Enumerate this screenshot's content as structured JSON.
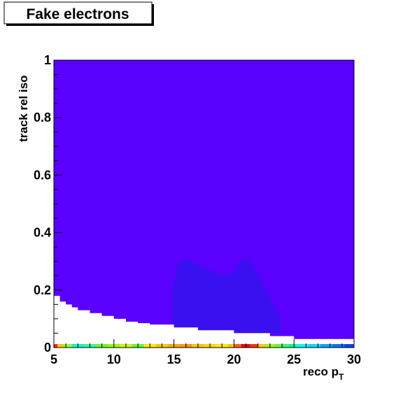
{
  "chart_data": {
    "type": "heatmap",
    "title": "Fake electrons",
    "xlabel_main": "reco p",
    "xlabel_sub": "T",
    "ylabel": "track rel iso",
    "xlim": [
      5,
      30
    ],
    "ylim": [
      0,
      1
    ],
    "x_ticks": [
      5,
      10,
      15,
      20,
      25,
      30
    ],
    "x_tick_labels": [
      "5",
      "10",
      "15",
      "20",
      "25",
      "30"
    ],
    "y_ticks": [
      0,
      0.2,
      0.4,
      0.6,
      0.8,
      1
    ],
    "y_tick_labels": [
      "0",
      "0.2",
      "0.4",
      "0.6",
      "0.8",
      "1"
    ],
    "grid": false,
    "background_color": "#5a00ff",
    "dense_color": "#3a10f0",
    "empty_region_upper_edge": [
      {
        "x": 5.0,
        "y": 0.18
      },
      {
        "x": 5.5,
        "y": 0.16
      },
      {
        "x": 6.0,
        "y": 0.15
      },
      {
        "x": 6.5,
        "y": 0.14
      },
      {
        "x": 7.0,
        "y": 0.13
      },
      {
        "x": 8.0,
        "y": 0.12
      },
      {
        "x": 9.0,
        "y": 0.11
      },
      {
        "x": 10.0,
        "y": 0.1
      },
      {
        "x": 11.0,
        "y": 0.09
      },
      {
        "x": 12.0,
        "y": 0.085
      },
      {
        "x": 13.0,
        "y": 0.08
      },
      {
        "x": 15.0,
        "y": 0.07
      },
      {
        "x": 17.0,
        "y": 0.06
      },
      {
        "x": 20.0,
        "y": 0.05
      },
      {
        "x": 23.0,
        "y": 0.04
      },
      {
        "x": 25.0,
        "y": 0.03
      },
      {
        "x": 30.0,
        "y": 0.03
      }
    ],
    "dense_region_outline": [
      {
        "x": 14.9,
        "y": 0.06
      },
      {
        "x": 14.9,
        "y": 0.2
      },
      {
        "x": 15.3,
        "y": 0.29
      },
      {
        "x": 16.0,
        "y": 0.31
      },
      {
        "x": 17.0,
        "y": 0.29
      },
      {
        "x": 18.0,
        "y": 0.27
      },
      {
        "x": 19.0,
        "y": 0.25
      },
      {
        "x": 20.0,
        "y": 0.26
      },
      {
        "x": 20.5,
        "y": 0.3
      },
      {
        "x": 21.2,
        "y": 0.31
      },
      {
        "x": 21.8,
        "y": 0.27
      },
      {
        "x": 22.4,
        "y": 0.22
      },
      {
        "x": 23.0,
        "y": 0.17
      },
      {
        "x": 23.8,
        "y": 0.11
      },
      {
        "x": 24.0,
        "y": 0.05
      },
      {
        "x": 20.0,
        "y": 0.05
      },
      {
        "x": 17.0,
        "y": 0.06
      }
    ],
    "bottom_row_y": [
      0,
      0.012
    ],
    "bottom_row_cells": [
      {
        "x0": 5.0,
        "x1": 5.3,
        "color": "#ff2020"
      },
      {
        "x0": 5.3,
        "x1": 5.8,
        "color": "#ffcc00"
      },
      {
        "x0": 5.8,
        "x1": 6.5,
        "color": "#99ff33"
      },
      {
        "x0": 6.5,
        "x1": 7.5,
        "color": "#00ffcc"
      },
      {
        "x0": 7.5,
        "x1": 8.5,
        "color": "#33ff99"
      },
      {
        "x0": 8.5,
        "x1": 9.5,
        "color": "#66ff33"
      },
      {
        "x0": 9.5,
        "x1": 10.5,
        "color": "#99ff00"
      },
      {
        "x0": 10.5,
        "x1": 11.5,
        "color": "#ccff00"
      },
      {
        "x0": 11.5,
        "x1": 12.5,
        "color": "#66ff33"
      },
      {
        "x0": 12.5,
        "x1": 13.5,
        "color": "#ffee00"
      },
      {
        "x0": 13.5,
        "x1": 14.5,
        "color": "#ffcc00"
      },
      {
        "x0": 14.5,
        "x1": 15.5,
        "color": "#ffaa00"
      },
      {
        "x0": 15.5,
        "x1": 16.5,
        "color": "#ff9900"
      },
      {
        "x0": 16.5,
        "x1": 17.5,
        "color": "#ffcc00"
      },
      {
        "x0": 17.5,
        "x1": 18.5,
        "color": "#ffdd00"
      },
      {
        "x0": 18.5,
        "x1": 19.5,
        "color": "#ffee00"
      },
      {
        "x0": 19.5,
        "x1": 20.0,
        "color": "#ffcc00"
      },
      {
        "x0": 20.0,
        "x1": 20.6,
        "color": "#ff6600"
      },
      {
        "x0": 20.6,
        "x1": 21.3,
        "color": "#ee0000"
      },
      {
        "x0": 21.3,
        "x1": 22.0,
        "color": "#ff3300"
      },
      {
        "x0": 22.0,
        "x1": 22.7,
        "color": "#ffcc00"
      },
      {
        "x0": 22.7,
        "x1": 23.4,
        "color": "#99ff00"
      },
      {
        "x0": 23.4,
        "x1": 24.0,
        "color": "#66ff33"
      },
      {
        "x0": 24.0,
        "x1": 24.6,
        "color": "#33ff66"
      },
      {
        "x0": 24.6,
        "x1": 25.2,
        "color": "#00ff99"
      },
      {
        "x0": 25.2,
        "x1": 26.2,
        "color": "#00ffff"
      },
      {
        "x0": 26.2,
        "x1": 27.2,
        "color": "#00ddff"
      },
      {
        "x0": 27.2,
        "x1": 28.2,
        "color": "#00aaff"
      },
      {
        "x0": 28.2,
        "x1": 29.2,
        "color": "#0077ff"
      },
      {
        "x0": 29.2,
        "x1": 30.0,
        "color": "#0044ff"
      }
    ]
  }
}
